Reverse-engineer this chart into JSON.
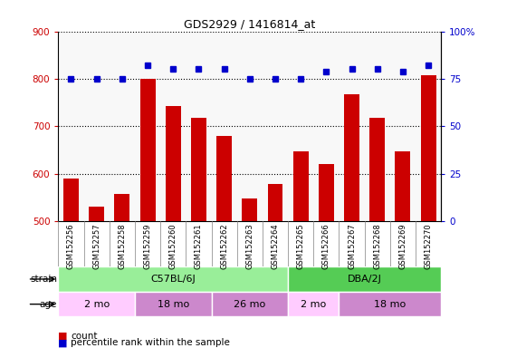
{
  "title": "GDS2929 / 1416814_at",
  "samples": [
    "GSM152256",
    "GSM152257",
    "GSM152258",
    "GSM152259",
    "GSM152260",
    "GSM152261",
    "GSM152262",
    "GSM152263",
    "GSM152264",
    "GSM152265",
    "GSM152266",
    "GSM152267",
    "GSM152268",
    "GSM152269",
    "GSM152270"
  ],
  "counts": [
    590,
    530,
    558,
    800,
    742,
    718,
    680,
    548,
    578,
    648,
    620,
    768,
    718,
    648,
    808
  ],
  "percentile_ranks": [
    75,
    75,
    75,
    82,
    80,
    80,
    80,
    75,
    75,
    75,
    79,
    80,
    80,
    79,
    82
  ],
  "ylim_left": [
    500,
    900
  ],
  "ylim_right": [
    0,
    100
  ],
  "yticks_left": [
    500,
    600,
    700,
    800,
    900
  ],
  "yticks_right": [
    0,
    25,
    50,
    75,
    100
  ],
  "bar_color": "#cc0000",
  "dot_color": "#0000cc",
  "strain_groups": [
    {
      "label": "C57BL/6J",
      "start": 0,
      "end": 9,
      "color": "#99ee99"
    },
    {
      "label": "DBA/2J",
      "start": 9,
      "end": 15,
      "color": "#55cc55"
    }
  ],
  "age_groups": [
    {
      "label": "2 mo",
      "start": 0,
      "end": 3,
      "color": "#ffbbff"
    },
    {
      "label": "18 mo",
      "start": 3,
      "end": 6,
      "color": "#dd88dd"
    },
    {
      "label": "26 mo",
      "start": 6,
      "end": 9,
      "color": "#dd88dd"
    },
    {
      "label": "2 mo",
      "start": 9,
      "end": 11,
      "color": "#ffbbff"
    },
    {
      "label": "18 mo",
      "start": 11,
      "end": 15,
      "color": "#dd88dd"
    }
  ],
  "strain_label": "strain",
  "age_label": "age",
  "legend_count_label": "count",
  "legend_pct_label": "percentile rank within the sample",
  "background_color": "#ffffff"
}
